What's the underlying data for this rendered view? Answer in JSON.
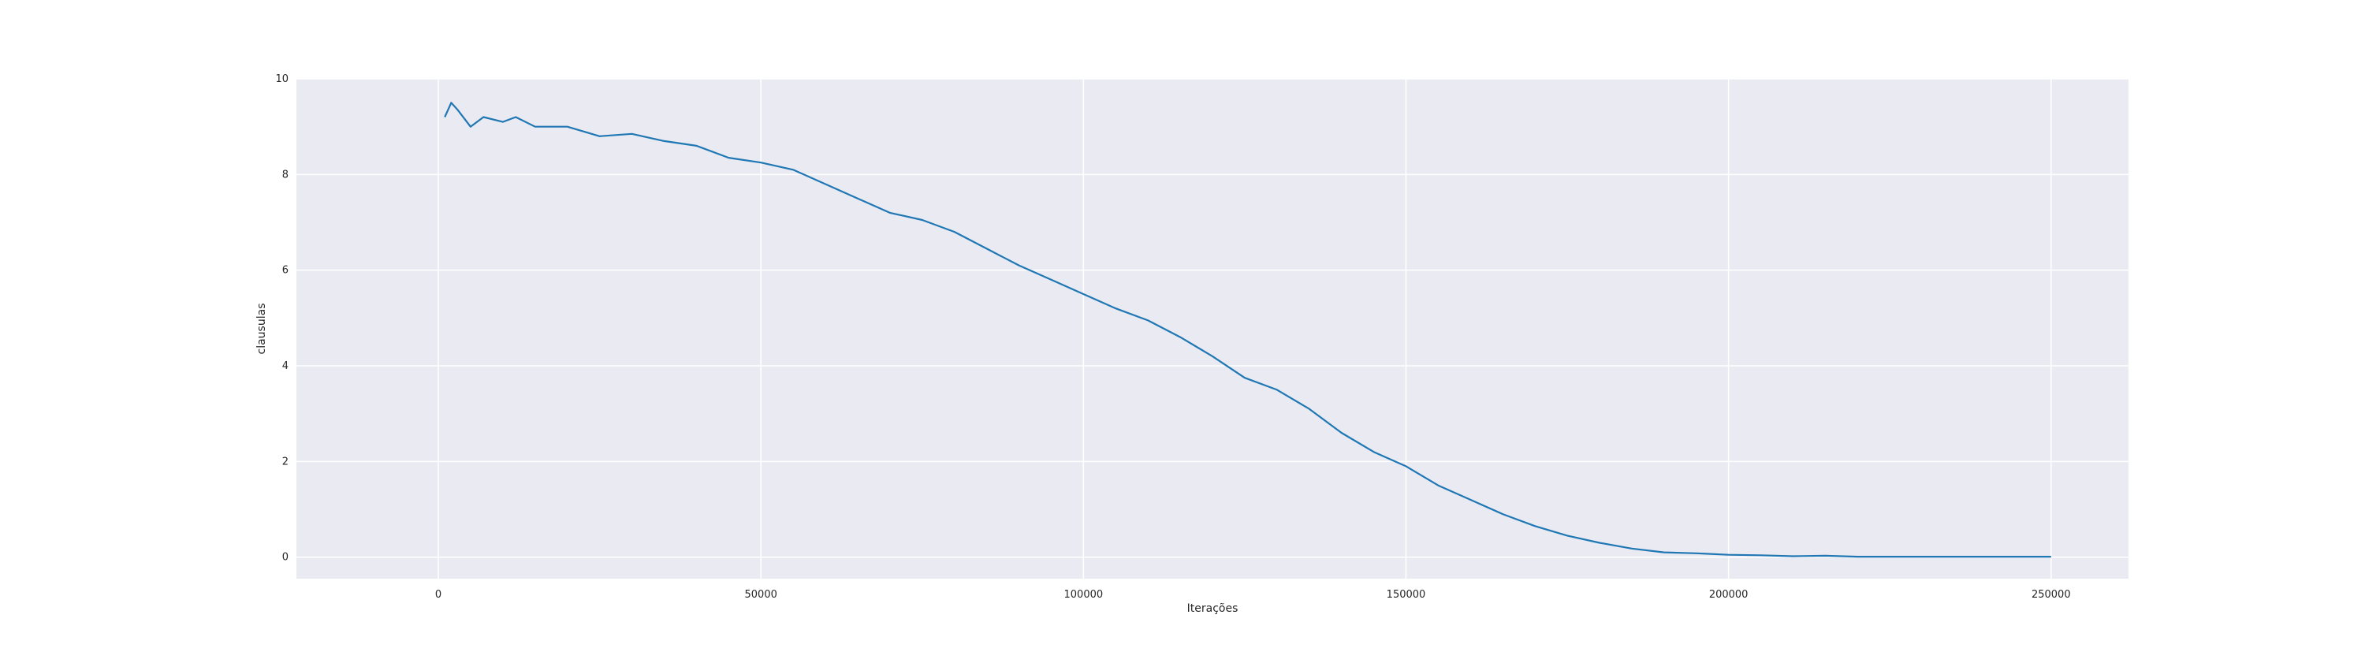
{
  "chart_data": {
    "type": "line",
    "title": "",
    "xlabel": "Iterações",
    "ylabel": "clausulas",
    "xlim": [
      -22000,
      262000
    ],
    "ylim": [
      -0.45,
      10
    ],
    "xticks": [
      0,
      50000,
      100000,
      150000,
      200000,
      250000
    ],
    "yticks": [
      0,
      2,
      4,
      6,
      8,
      10
    ],
    "grid": true,
    "legend": "none",
    "style": {
      "plot_background": "#eaeaf2",
      "grid_color": "#ffffff",
      "line_color": "#1f77b4"
    },
    "series": [
      {
        "x": [
          1000,
          2000,
          3000,
          5000,
          7000,
          10000,
          12000,
          15000,
          20000,
          25000,
          30000,
          35000,
          40000,
          45000,
          50000,
          55000,
          60000,
          65000,
          70000,
          75000,
          80000,
          85000,
          90000,
          95000,
          100000,
          105000,
          110000,
          115000,
          120000,
          125000,
          130000,
          135000,
          140000,
          145000,
          150000,
          155000,
          160000,
          165000,
          170000,
          175000,
          180000,
          185000,
          190000,
          195000,
          200000,
          205000,
          210000,
          215000,
          220000,
          230000,
          240000,
          250000
        ],
        "y": [
          9.2,
          9.5,
          9.35,
          9.0,
          9.2,
          9.1,
          9.2,
          9.0,
          9.0,
          8.8,
          8.85,
          8.7,
          8.6,
          8.35,
          8.25,
          8.1,
          7.8,
          7.5,
          7.2,
          7.05,
          6.8,
          6.45,
          6.1,
          5.8,
          5.5,
          5.2,
          4.95,
          4.6,
          4.2,
          3.75,
          3.5,
          3.1,
          2.6,
          2.2,
          1.9,
          1.5,
          1.2,
          0.9,
          0.65,
          0.45,
          0.3,
          0.18,
          0.1,
          0.08,
          0.05,
          0.04,
          0.02,
          0.03,
          0.01,
          0.01,
          0.01,
          0.01
        ]
      }
    ]
  }
}
